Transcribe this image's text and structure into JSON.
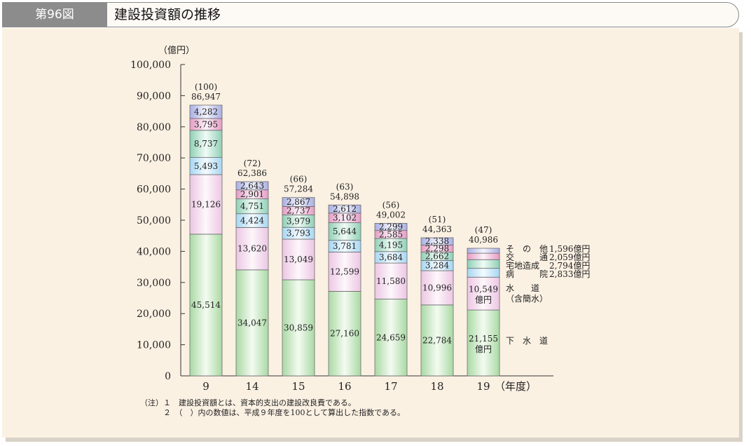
{
  "header": {
    "figure_number": "第96図",
    "title": "建設投資額の推移"
  },
  "notes": [
    "（注）１　建設投資額とは、資本的支出の建設改良費である。",
    "　　　２　（　）内の数値は、平成９年度を100として算出した指数である。"
  ],
  "chart_data": {
    "type": "bar",
    "stacked": true,
    "unit_label": "（億円）",
    "ylim": [
      0,
      100000
    ],
    "yticks": [
      "0",
      "10,000",
      "20,000",
      "30,000",
      "40,000",
      "50,000",
      "60,000",
      "70,000",
      "80,000",
      "90,000",
      "100,000"
    ],
    "x_suffix": "（年度）",
    "categories": [
      "9",
      "14",
      "15",
      "16",
      "17",
      "18",
      "19"
    ],
    "totals": [
      86947,
      62386,
      57284,
      54898,
      49002,
      44363,
      40986
    ],
    "totals_text": [
      "86,947",
      "62,386",
      "57,284",
      "54,898",
      "49,002",
      "44,363",
      "40,986"
    ],
    "index_text": [
      "(100)",
      "(72)",
      "(66)",
      "(63)",
      "(56)",
      "(51)",
      "(47)"
    ],
    "series": [
      {
        "key": "sewer",
        "values": [
          45514,
          34047,
          30859,
          27160,
          24659,
          22784,
          21155
        ],
        "labels": [
          "45,514",
          "34,047",
          "30,859",
          "27,160",
          "24,659",
          "22,784",
          "21,155"
        ]
      },
      {
        "key": "water",
        "values": [
          19126,
          13620,
          13049,
          12599,
          11580,
          10996,
          10549
        ],
        "labels": [
          "19,126",
          "13,620",
          "13,049",
          "12,599",
          "11,580",
          "10,996",
          "10,549"
        ]
      },
      {
        "key": "hosp",
        "values": [
          5493,
          4424,
          3793,
          3781,
          3684,
          3284,
          2833
        ],
        "labels": [
          "5,493",
          "4,424",
          "3,793",
          "3,781",
          "3,684",
          "3,284",
          ""
        ]
      },
      {
        "key": "land",
        "values": [
          8737,
          4751,
          3979,
          5644,
          4195,
          2662,
          2794
        ],
        "labels": [
          "8,737",
          "4,751",
          "3,979",
          "5,644",
          "4,195",
          "2,662",
          ""
        ]
      },
      {
        "key": "traffic",
        "values": [
          3795,
          2901,
          2737,
          3102,
          2585,
          2298,
          2059
        ],
        "labels": [
          "3,795",
          "2,901",
          "2,737",
          "3,102",
          "2,585",
          "2,298",
          ""
        ]
      },
      {
        "key": "other",
        "values": [
          4282,
          2643,
          2867,
          2612,
          2299,
          2338,
          1596
        ],
        "labels": [
          "4,282",
          "2,643",
          "2,867",
          "2,612",
          "2,299",
          "2,338",
          ""
        ]
      }
    ],
    "last_bar_unit": "億円",
    "legend": [
      {
        "key": "other",
        "name": "そ　の　他",
        "value": "1,596億円"
      },
      {
        "key": "traffic",
        "name": "交　　　通",
        "value": "2,059億円"
      },
      {
        "key": "land",
        "name": "宅地造成",
        "value": "2,794億円"
      },
      {
        "key": "hosp",
        "name": "病　　　院",
        "value": "2,833億円"
      },
      {
        "key": "water",
        "name": "水　　道",
        "name2": "（含簡水）"
      },
      {
        "key": "sewer",
        "name": "下　水　道"
      }
    ],
    "colors": {
      "sewer": "#a9d9a4",
      "water": "#ecc6e3",
      "hosp": "#a6d6f2",
      "land": "#8fcfb6",
      "traffic": "#e59bc4",
      "other": "#a8aee3"
    }
  }
}
